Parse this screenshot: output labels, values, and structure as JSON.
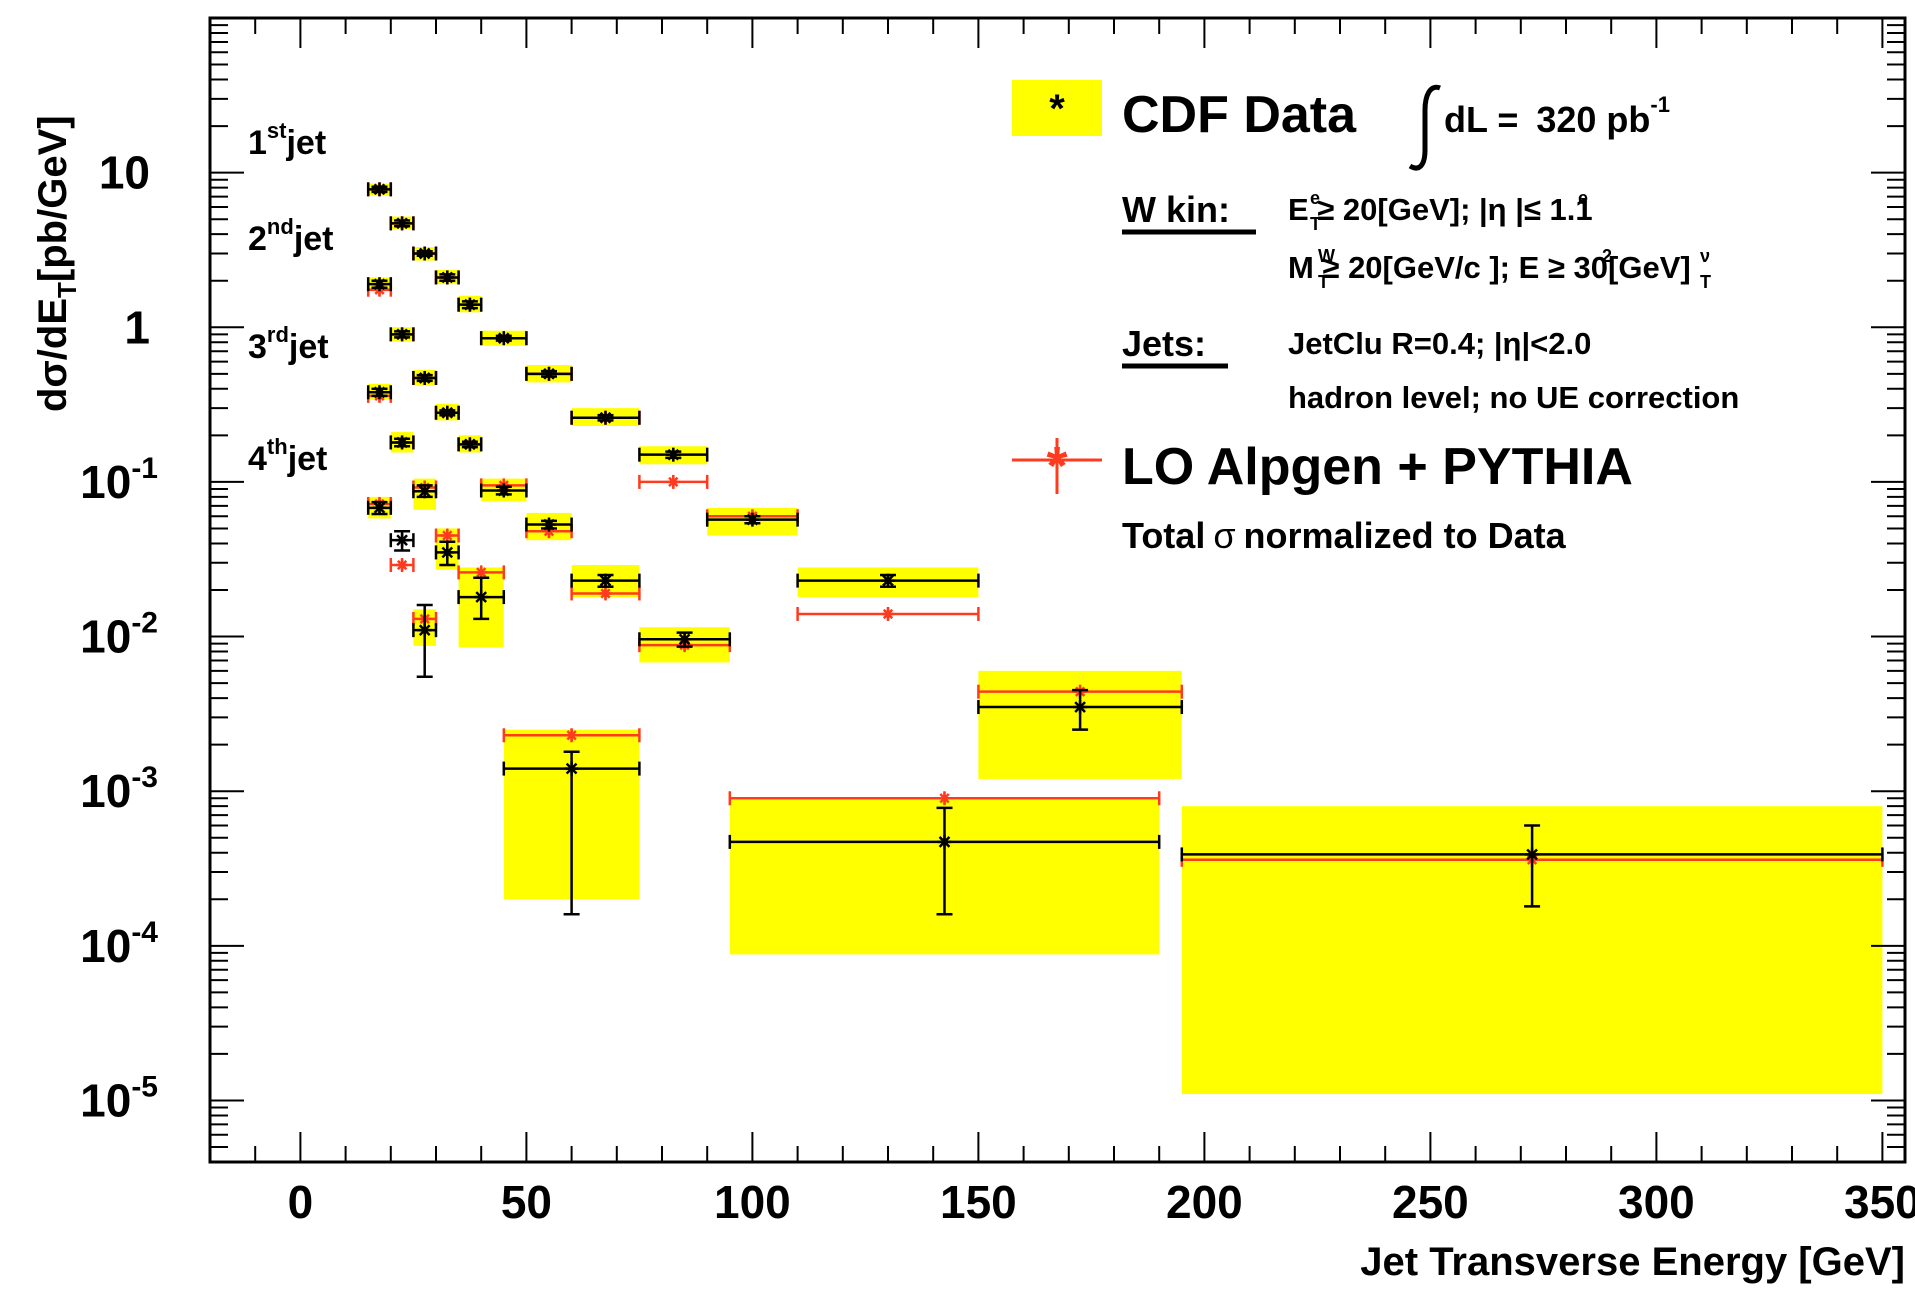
{
  "chart_data": {
    "type": "scatter",
    "xlabel": "Jet Transverse Energy [GeV]",
    "ylabel": "dσ/dE",
    "ylabel_sub": "T",
    "ylabel_unit": "[pb/GeV]",
    "xlim": [
      -20,
      355
    ],
    "ylim": [
      4e-06,
      100
    ],
    "y_scale": "log",
    "x_ticks": [
      0,
      50,
      100,
      150,
      200,
      250,
      300,
      350
    ],
    "y_ticks": [
      {
        "value": 10,
        "base": "10",
        "exp": ""
      },
      {
        "value": 1,
        "base": "1",
        "exp": ""
      },
      {
        "value": 0.1,
        "base": "10",
        "exp": "-1"
      },
      {
        "value": 0.01,
        "base": "10",
        "exp": "-2"
      },
      {
        "value": 0.001,
        "base": "10",
        "exp": "-3"
      },
      {
        "value": 0.0001,
        "base": "10",
        "exp": "-4"
      },
      {
        "value": 1e-05,
        "base": "10",
        "exp": "-5"
      }
    ],
    "jet_labels": [
      {
        "sup": "st",
        "text": "1",
        "rest": "jet"
      },
      {
        "sup": "nd",
        "text": "2",
        "rest": "jet"
      },
      {
        "sup": "rd",
        "text": "3",
        "rest": "jet"
      },
      {
        "sup": "th",
        "text": "4",
        "rest": "jet"
      }
    ],
    "colors": {
      "data": "#000000",
      "mc": "#ff3b1f",
      "band": "#ffff00"
    },
    "legend": {
      "data_label": "CDF Data",
      "lumi_prefix": "dL =",
      "lumi_value": "320 pb",
      "lumi_exp": "-1",
      "wkin_title": "W kin:",
      "wkin_line1": "E  ≥ 20[GeV]; |η |≤ 1.1",
      "wkin_line2": "M   ≥ 20[GeV/c ]; E  ≥ 30[GeV]",
      "jets_title": "Jets:",
      "jets_line1": "JetClu R=0.4; |η|<2.0",
      "jets_line2": "hadron level; no UE correction",
      "mc_label": "LO Alpgen + PYTHIA",
      "norm_prefix": "Total",
      "norm_symbol": "σ",
      "norm_suffix": "normalized to Data"
    },
    "series": [
      {
        "name": "1st jet",
        "points": [
          {
            "x": 17.5,
            "xlo": 15,
            "xhi": 20,
            "data": 7.8,
            "mc": 7.8,
            "syst": [
              7.1,
              8.5
            ],
            "err": [
              7.5,
              8.1
            ]
          },
          {
            "x": 22.5,
            "xlo": 20,
            "xhi": 25,
            "data": 4.7,
            "mc": 4.7,
            "syst": [
              4.3,
              5.2
            ],
            "err": [
              4.5,
              4.9
            ]
          },
          {
            "x": 27.5,
            "xlo": 25,
            "xhi": 30,
            "data": 3.0,
            "mc": 3.0,
            "syst": [
              2.7,
              3.3
            ],
            "err": [
              2.9,
              3.1
            ]
          },
          {
            "x": 32.5,
            "xlo": 30,
            "xhi": 35,
            "data": 2.1,
            "mc": 2.1,
            "syst": [
              1.9,
              2.35
            ],
            "err": [
              2.0,
              2.2
            ]
          },
          {
            "x": 37.5,
            "xlo": 35,
            "xhi": 40,
            "data": 1.4,
            "mc": 1.4,
            "syst": [
              1.25,
              1.6
            ],
            "err": [
              1.33,
              1.47
            ]
          },
          {
            "x": 45,
            "xlo": 40,
            "xhi": 50,
            "data": 0.85,
            "mc": 0.85,
            "syst": [
              0.76,
              0.95
            ],
            "err": [
              0.82,
              0.88
            ]
          },
          {
            "x": 55,
            "xlo": 50,
            "xhi": 60,
            "data": 0.5,
            "mc": 0.5,
            "syst": [
              0.44,
              0.57
            ],
            "err": [
              0.48,
              0.52
            ]
          },
          {
            "x": 67.5,
            "xlo": 60,
            "xhi": 75,
            "data": 0.26,
            "mc": 0.26,
            "syst": [
              0.23,
              0.3
            ],
            "err": [
              0.25,
              0.27
            ]
          },
          {
            "x": 82.5,
            "xlo": 75,
            "xhi": 90,
            "data": 0.15,
            "mc": 0.1,
            "syst": [
              0.13,
              0.17
            ],
            "err": [
              0.143,
              0.157
            ]
          },
          {
            "x": 100,
            "xlo": 90,
            "xhi": 110,
            "data": 0.057,
            "mc": 0.06,
            "syst": [
              0.045,
              0.068
            ],
            "err": [
              0.054,
              0.06
            ]
          },
          {
            "x": 130,
            "xlo": 110,
            "xhi": 150,
            "data": 0.023,
            "mc": 0.014,
            "syst": [
              0.018,
              0.028
            ],
            "err": [
              0.021,
              0.025
            ]
          },
          {
            "x": 172.5,
            "xlo": 150,
            "xhi": 195,
            "data": 0.0035,
            "mc": 0.0044,
            "syst": [
              0.0012,
              0.006
            ],
            "err": [
              0.0025,
              0.0045
            ]
          },
          {
            "x": 272.5,
            "xlo": 195,
            "xhi": 350,
            "data": 0.00039,
            "mc": 0.00036,
            "syst": [
              1.1e-05,
              0.0008
            ],
            "err": [
              0.00018,
              0.0006
            ]
          }
        ]
      },
      {
        "name": "2nd jet",
        "points": [
          {
            "x": 17.5,
            "xlo": 15,
            "xhi": 20,
            "data": 1.9,
            "mc": 1.75,
            "syst": [
              1.7,
              2.1
            ],
            "err": [
              1.8,
              2.0
            ]
          },
          {
            "x": 22.5,
            "xlo": 20,
            "xhi": 25,
            "data": 0.9,
            "mc": 0.9,
            "syst": [
              0.81,
              1.0
            ],
            "err": [
              0.86,
              0.94
            ]
          },
          {
            "x": 27.5,
            "xlo": 25,
            "xhi": 30,
            "data": 0.47,
            "mc": 0.47,
            "syst": [
              0.42,
              0.53
            ],
            "err": [
              0.45,
              0.49
            ]
          },
          {
            "x": 32.5,
            "xlo": 30,
            "xhi": 35,
            "data": 0.28,
            "mc": 0.28,
            "syst": [
              0.25,
              0.32
            ],
            "err": [
              0.27,
              0.29
            ]
          },
          {
            "x": 37.5,
            "xlo": 35,
            "xhi": 40,
            "data": 0.175,
            "mc": 0.175,
            "syst": [
              0.155,
              0.2
            ],
            "err": [
              0.168,
              0.182
            ]
          },
          {
            "x": 45,
            "xlo": 40,
            "xhi": 50,
            "data": 0.088,
            "mc": 0.095,
            "syst": [
              0.075,
              0.105
            ],
            "err": [
              0.083,
              0.093
            ]
          },
          {
            "x": 55,
            "xlo": 50,
            "xhi": 60,
            "data": 0.053,
            "mc": 0.048,
            "syst": [
              0.042,
              0.063
            ],
            "err": [
              0.05,
              0.056
            ]
          },
          {
            "x": 67.5,
            "xlo": 60,
            "xhi": 75,
            "data": 0.023,
            "mc": 0.019,
            "syst": [
              0.018,
              0.029
            ],
            "err": [
              0.021,
              0.025
            ]
          },
          {
            "x": 85,
            "xlo": 75,
            "xhi": 95,
            "data": 0.0096,
            "mc": 0.0088,
            "syst": [
              0.0068,
              0.0115
            ],
            "err": [
              0.0086,
              0.0106
            ]
          },
          {
            "x": 142.5,
            "xlo": 95,
            "xhi": 190,
            "data": 0.00047,
            "mc": 0.0009,
            "syst": [
              8.8e-05,
              0.00088
            ],
            "err": [
              0.00016,
              0.00078
            ]
          }
        ]
      },
      {
        "name": "3rd jet",
        "points": [
          {
            "x": 17.5,
            "xlo": 15,
            "xhi": 20,
            "data": 0.38,
            "mc": 0.36,
            "syst": [
              0.34,
              0.43
            ],
            "err": [
              0.36,
              0.4
            ]
          },
          {
            "x": 22.5,
            "xlo": 20,
            "xhi": 25,
            "data": 0.18,
            "mc": 0.18,
            "syst": [
              0.155,
              0.21
            ],
            "err": [
              0.17,
              0.19
            ]
          },
          {
            "x": 27.5,
            "xlo": 25,
            "xhi": 30,
            "data": 0.087,
            "mc": 0.092,
            "syst": [
              0.066,
              0.105
            ],
            "err": [
              0.08,
              0.095
            ]
          },
          {
            "x": 32.5,
            "xlo": 30,
            "xhi": 35,
            "data": 0.035,
            "mc": 0.045,
            "syst": [
              0.027,
              0.05
            ],
            "err": [
              0.029,
              0.041
            ]
          },
          {
            "x": 40,
            "xlo": 35,
            "xhi": 45,
            "data": 0.018,
            "mc": 0.026,
            "syst": [
              0.0085,
              0.028
            ],
            "err": [
              0.013,
              0.024
            ]
          },
          {
            "x": 60,
            "xlo": 45,
            "xhi": 75,
            "data": 0.0014,
            "mc": 0.0023,
            "syst": [
              0.0002,
              0.0025
            ],
            "err": [
              0.00016,
              0.0018
            ]
          }
        ]
      },
      {
        "name": "4th jet",
        "points": [
          {
            "x": 17.5,
            "xlo": 15,
            "xhi": 20,
            "data": 0.068,
            "mc": 0.072,
            "syst": [
              0.058,
              0.08
            ],
            "err": [
              0.062,
              0.074
            ]
          },
          {
            "x": 22.5,
            "xlo": 20,
            "xhi": 25,
            "data": 0.042,
            "mc": 0.029,
            "syst": null,
            "err": [
              0.036,
              0.048
            ]
          },
          {
            "x": 27.5,
            "xlo": 25,
            "xhi": 30,
            "data": 0.011,
            "mc": 0.013,
            "syst": [
              0.0087,
              0.015
            ],
            "err": [
              0.0055,
              0.016
            ]
          }
        ]
      }
    ]
  }
}
